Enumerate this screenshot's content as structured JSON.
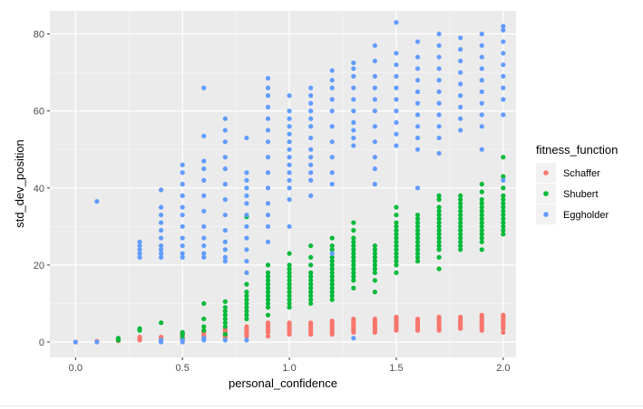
{
  "chart_data": {
    "type": "scatter",
    "title": "",
    "xlabel": "personal_confidence",
    "ylabel": "std_dev_position",
    "xlim": [
      -0.12,
      2.06
    ],
    "ylim": [
      -4,
      86
    ],
    "x_ticks": [
      0.0,
      0.5,
      1.0,
      1.5,
      2.0
    ],
    "x_tick_labels": [
      "0.0",
      "0.5",
      "1.0",
      "1.5",
      "2.0"
    ],
    "y_ticks": [
      0,
      20,
      40,
      60,
      80
    ],
    "y_tick_labels": [
      "0",
      "20",
      "40",
      "60",
      "80"
    ],
    "grid": true,
    "legend": {
      "title": "fitness_function",
      "position": "right"
    },
    "series": [
      {
        "name": "Schaffer",
        "color": "#F8766D",
        "points": [
          {
            "x": 0.0,
            "values": [
              0.0,
              0.0
            ]
          },
          {
            "x": 0.1,
            "values": [
              0.1,
              0.2
            ]
          },
          {
            "x": 0.2,
            "values": [
              0.3,
              0.5
            ]
          },
          {
            "x": 0.3,
            "values": [
              0.5,
              0.8,
              1.0,
              1.3
            ]
          },
          {
            "x": 0.4,
            "values": [
              0.6,
              1.0,
              1.3
            ]
          },
          {
            "x": 0.5,
            "values": [
              0.5,
              1.0,
              1.5,
              2.0,
              2.5
            ]
          },
          {
            "x": 0.6,
            "values": [
              1.0,
              1.5,
              2.0,
              2.5,
              3.0
            ]
          },
          {
            "x": 0.7,
            "values": [
              1.0,
              1.5,
              2.0,
              2.5,
              3.0,
              3.5
            ]
          },
          {
            "x": 0.8,
            "values": [
              1.5,
              2.0,
              2.5,
              3.0,
              3.5,
              4.0
            ]
          },
          {
            "x": 0.9,
            "values": [
              1.5,
              2.5,
              3.0,
              3.5,
              4.0,
              4.5,
              5.0
            ]
          },
          {
            "x": 1.0,
            "values": [
              2.0,
              2.5,
              3.0,
              3.5,
              4.0,
              4.5,
              5.0
            ]
          },
          {
            "x": 1.1,
            "values": [
              2.0,
              2.5,
              3.0,
              3.5,
              4.0,
              4.5,
              5.0
            ]
          },
          {
            "x": 1.2,
            "values": [
              2.0,
              2.5,
              3.0,
              3.5,
              4.0,
              4.5,
              5.0,
              5.5
            ]
          },
          {
            "x": 1.3,
            "values": [
              2.5,
              3.0,
              3.5,
              4.0,
              4.5,
              5.0,
              5.5,
              6.0
            ]
          },
          {
            "x": 1.4,
            "values": [
              2.5,
              3.0,
              3.5,
              4.0,
              4.5,
              5.0,
              5.5,
              6.0
            ]
          },
          {
            "x": 1.5,
            "values": [
              3.0,
              3.5,
              4.0,
              4.5,
              5.0,
              5.5,
              6.0,
              6.5
            ]
          },
          {
            "x": 1.6,
            "values": [
              3.0,
              3.5,
              4.0,
              4.5,
              5.0,
              5.5,
              6.0
            ]
          },
          {
            "x": 1.7,
            "values": [
              3.0,
              3.5,
              4.0,
              4.5,
              5.0,
              5.5,
              6.0,
              6.5
            ]
          },
          {
            "x": 1.8,
            "values": [
              3.5,
              4.0,
              4.5,
              5.0,
              5.5,
              6.0,
              6.5
            ]
          },
          {
            "x": 1.9,
            "values": [
              3.0,
              3.5,
              4.0,
              4.5,
              5.0,
              5.5,
              6.0,
              6.5,
              7.0
            ]
          },
          {
            "x": 2.0,
            "values": [
              2.5,
              3.5,
              4.0,
              4.5,
              5.0,
              5.5,
              6.0,
              6.5,
              7.0
            ]
          }
        ]
      },
      {
        "name": "Shubert",
        "color": "#00BA38",
        "points": [
          {
            "x": 0.2,
            "values": [
              0.5,
              1.0
            ]
          },
          {
            "x": 0.3,
            "values": [
              3.0,
              3.5
            ]
          },
          {
            "x": 0.4,
            "values": [
              5.0
            ]
          },
          {
            "x": 0.5,
            "values": [
              1.0,
              2.0,
              2.5
            ]
          },
          {
            "x": 0.6,
            "values": [
              3.0,
              4.0,
              6.0,
              10.0
            ]
          },
          {
            "x": 0.7,
            "values": [
              2.0,
              4.0,
              5.0,
              6.0,
              7.0,
              8.0,
              9.0,
              10.5
            ]
          },
          {
            "x": 0.8,
            "values": [
              6.0,
              7.0,
              8.0,
              9.0,
              10.0,
              11.0,
              12.0,
              13.0,
              15.0,
              32.5
            ]
          },
          {
            "x": 0.9,
            "values": [
              7.0,
              9.0,
              10.0,
              11.0,
              12.0,
              13.0,
              14.0,
              15.0,
              16.0,
              17.0,
              18.0,
              20.0
            ]
          },
          {
            "x": 1.0,
            "values": [
              9.0,
              10.0,
              11.0,
              12.0,
              13.0,
              14.0,
              15.0,
              16.0,
              17.0,
              18.0,
              19.0,
              20.0,
              23.0
            ]
          },
          {
            "x": 1.1,
            "values": [
              10.0,
              11.0,
              12.0,
              13.0,
              14.0,
              15.0,
              16.0,
              17.0,
              18.0,
              20.0,
              22.0,
              25.0
            ]
          },
          {
            "x": 1.2,
            "values": [
              11.0,
              12.0,
              13.0,
              14.0,
              15.0,
              16.0,
              17.0,
              18.0,
              19.0,
              20.0,
              21.0,
              22.0,
              24.0,
              25.0,
              27.0
            ]
          },
          {
            "x": 1.3,
            "values": [
              14.0,
              16.0,
              17.0,
              18.0,
              19.0,
              20.0,
              21.0,
              22.0,
              23.0,
              24.0,
              25.0,
              26.0,
              27.0,
              29.0,
              31.0
            ]
          },
          {
            "x": 1.4,
            "values": [
              13.0,
              16.0,
              18.0,
              19.0,
              20.0,
              21.0,
              22.0,
              23.0,
              24.0,
              25.0
            ]
          },
          {
            "x": 1.5,
            "values": [
              18.0,
              20.0,
              21.0,
              22.0,
              23.0,
              24.0,
              25.0,
              26.0,
              27.0,
              28.0,
              29.0,
              30.0,
              31.0,
              33.0,
              35.0
            ]
          },
          {
            "x": 1.6,
            "values": [
              21.0,
              22.0,
              23.0,
              24.0,
              25.0,
              26.0,
              27.0,
              28.0,
              29.0,
              30.0,
              31.0,
              32.0,
              33.0
            ]
          },
          {
            "x": 1.7,
            "values": [
              19.0,
              22.0,
              24.0,
              25.0,
              26.0,
              27.0,
              28.0,
              29.0,
              30.0,
              31.0,
              32.0,
              33.0,
              34.0,
              35.0,
              37.0,
              38.0
            ]
          },
          {
            "x": 1.8,
            "values": [
              24.0,
              25.0,
              26.0,
              27.0,
              28.0,
              29.0,
              30.0,
              31.0,
              32.0,
              33.0,
              34.0,
              35.0,
              36.0,
              37.0,
              38.0
            ]
          },
          {
            "x": 1.9,
            "values": [
              24.0,
              26.0,
              27.0,
              28.0,
              29.0,
              30.0,
              31.0,
              32.0,
              33.0,
              34.0,
              35.0,
              36.0,
              37.0,
              39.0,
              41.0
            ]
          },
          {
            "x": 2.0,
            "values": [
              28.0,
              29.0,
              30.0,
              31.0,
              32.0,
              33.0,
              34.0,
              35.0,
              36.0,
              37.0,
              38.0,
              40.0,
              43.0,
              48.0
            ]
          }
        ]
      },
      {
        "name": "Eggholder",
        "color": "#619CFF",
        "points": [
          {
            "x": 0.0,
            "values": [
              0.0
            ]
          },
          {
            "x": 0.1,
            "values": [
              0.0,
              36.5
            ]
          },
          {
            "x": 0.3,
            "values": [
              22.0,
              23.0,
              24.0,
              25.0,
              26.0
            ]
          },
          {
            "x": 0.4,
            "values": [
              0.0,
              0.5,
              22.0,
              23.0,
              24.0,
              25.0,
              27.0,
              29.0,
              31.0,
              33.0,
              35.0,
              39.5
            ]
          },
          {
            "x": 0.5,
            "values": [
              0.0,
              0.5,
              22.0,
              23.0,
              25.0,
              27.0,
              30.0,
              33.0,
              35.0,
              38.0,
              41.0,
              44.0,
              46.0
            ]
          },
          {
            "x": 0.6,
            "values": [
              0.5,
              1.0,
              22.0,
              23.0,
              25.0,
              27.0,
              30.0,
              34.0,
              38.0,
              42.0,
              45.0,
              47.0,
              53.5,
              66.0
            ]
          },
          {
            "x": 0.7,
            "values": [
              0.5,
              21.0,
              22.0,
              24.0,
              26.0,
              29.0,
              33.0,
              37.0,
              41.0,
              45.0,
              48.0,
              52.0,
              55.0,
              58.0
            ]
          },
          {
            "x": 0.8,
            "values": [
              0.5,
              18.0,
              21.0,
              24.0,
              27.0,
              30.0,
              33.0,
              36.0,
              38.0,
              40.0,
              42.0,
              44.0,
              53.0
            ]
          },
          {
            "x": 0.9,
            "values": [
              26.0,
              30.0,
              33.0,
              36.0,
              40.0,
              44.0,
              48.0,
              52.0,
              55.0,
              58.0,
              61.0,
              64.0,
              66.0,
              68.5
            ]
          },
          {
            "x": 1.0,
            "values": [
              30.0,
              37.0,
              40.0,
              42.0,
              44.0,
              46.0,
              48.0,
              50.0,
              52.0,
              54.0,
              56.0,
              58.0,
              60.0,
              64.0
            ]
          },
          {
            "x": 1.1,
            "values": [
              38.0,
              42.0,
              44.0,
              46.0,
              48.0,
              50.0,
              53.0,
              56.0,
              58.0,
              60.0,
              62.0,
              64.0,
              66.0
            ]
          },
          {
            "x": 1.2,
            "values": [
              23.0,
              41.0,
              44.0,
              48.0,
              52.0,
              56.0,
              60.0,
              63.0,
              66.0,
              68.0,
              70.5
            ]
          },
          {
            "x": 1.3,
            "values": [
              1.0,
              51.0,
              53.0,
              55.0,
              57.0,
              60.0,
              63.0,
              66.0,
              69.0,
              71.0,
              72.5
            ]
          },
          {
            "x": 1.4,
            "values": [
              41.0,
              45.0,
              48.0,
              52.0,
              56.0,
              60.0,
              63.0,
              66.0,
              69.0,
              73.0,
              77.0
            ]
          },
          {
            "x": 1.5,
            "values": [
              51.0,
              54.0,
              57.0,
              60.0,
              63.0,
              66.0,
              69.0,
              72.0,
              75.0,
              83.0
            ]
          },
          {
            "x": 1.6,
            "values": [
              40.0,
              50.0,
              53.0,
              56.0,
              59.0,
              62.0,
              65.0,
              68.0,
              71.0,
              74.0,
              78.0
            ]
          },
          {
            "x": 1.7,
            "values": [
              49.0,
              53.0,
              56.0,
              59.0,
              62.0,
              65.0,
              68.0,
              71.0,
              74.0,
              77.0,
              80.0
            ]
          },
          {
            "x": 1.8,
            "values": [
              55.0,
              58.0,
              61.0,
              64.0,
              67.0,
              70.0,
              73.0,
              76.0,
              79.0
            ]
          },
          {
            "x": 1.9,
            "values": [
              50.0,
              56.0,
              59.0,
              62.0,
              65.0,
              68.0,
              71.0,
              74.0,
              77.0,
              80.0
            ]
          },
          {
            "x": 2.0,
            "values": [
              42.0,
              59.0,
              63.0,
              66.0,
              69.0,
              72.0,
              75.0,
              78.0,
              81.0,
              82.0
            ]
          }
        ]
      }
    ]
  }
}
